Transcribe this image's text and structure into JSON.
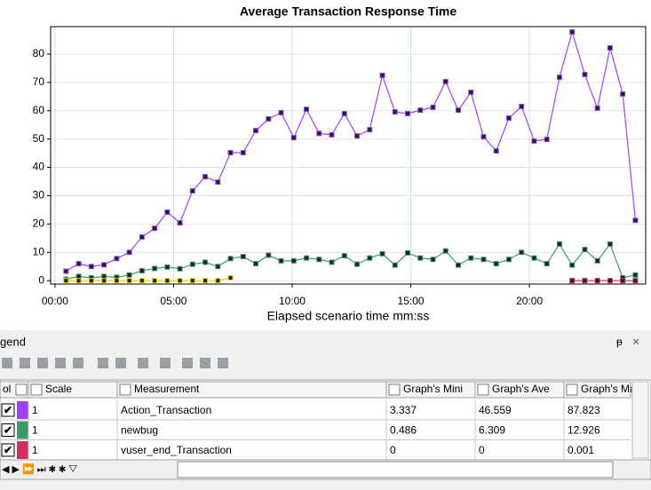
{
  "chart_data": {
    "type": "line",
    "title": "Average Transaction Response Time",
    "x_label": "Elapsed scenario time mm:ss",
    "x": [
      28,
      60,
      92,
      124,
      156,
      188,
      220,
      252,
      284,
      316,
      348,
      380,
      412,
      444,
      476,
      508,
      540,
      572,
      604,
      636,
      668,
      700,
      732,
      764,
      796,
      828,
      860,
      892,
      924,
      956,
      988,
      1020,
      1052,
      1084,
      1116,
      1148,
      1180,
      1212,
      1244,
      1276,
      1308,
      1340,
      1372,
      1404,
      1436,
      1468
    ],
    "xlim": [
      -11,
      1494
    ],
    "xticks": [
      {
        "value": 0,
        "label": "00:00"
      },
      {
        "value": 300,
        "label": "05:00"
      },
      {
        "value": 600,
        "label": "10:00"
      },
      {
        "value": 900,
        "label": "15:00"
      },
      {
        "value": 1200,
        "label": "20:00"
      }
    ],
    "ylim": [
      -1.2,
      89.7
    ],
    "yticks": [
      0,
      10,
      20,
      30,
      40,
      50,
      60,
      70,
      80
    ],
    "grid": true,
    "series": [
      {
        "name": "Action_Transaction",
        "color": "#a040ff",
        "values": [
          3.337,
          6,
          5,
          5.6,
          7.8,
          10,
          15.4,
          18.5,
          24.2,
          20.4,
          31.7,
          36.7,
          34.8,
          45.2,
          45.2,
          53,
          57.1,
          59.3,
          50.5,
          60.5,
          52,
          51.5,
          59,
          51.1,
          53.3,
          72.5,
          59.6,
          59,
          60.2,
          61.2,
          70.3,
          60.2,
          66.5,
          50.8,
          45.8,
          57.4,
          61.5,
          49.3,
          49.9,
          71.8,
          87.823,
          72.8,
          60.9,
          82.2,
          65.9,
          21.3
        ]
      },
      {
        "name": "newbug",
        "color": "#3c9a6a",
        "values": [
          0.486,
          1.5,
          1,
          1.5,
          1.2,
          2,
          3.5,
          4.3,
          4.8,
          4.2,
          5.8,
          6.5,
          5,
          7.8,
          8.5,
          6,
          9,
          7,
          7,
          8,
          7.5,
          6.5,
          8.8,
          5.8,
          8,
          9.5,
          5.5,
          9.8,
          8,
          7.5,
          10.5,
          5.5,
          8,
          7.5,
          6,
          7.5,
          10,
          8,
          6,
          12.926,
          5.5,
          11,
          7,
          12.9,
          1,
          2
        ]
      },
      {
        "name": "vuser_end_Transaction",
        "color": "#d0305a",
        "values": [
          null,
          null,
          null,
          null,
          null,
          null,
          null,
          null,
          null,
          null,
          null,
          null,
          null,
          null,
          null,
          null,
          null,
          null,
          null,
          null,
          null,
          null,
          null,
          null,
          null,
          null,
          null,
          null,
          null,
          null,
          null,
          null,
          null,
          null,
          null,
          null,
          null,
          null,
          null,
          null,
          0,
          0,
          0,
          0,
          0.001,
          0
        ]
      },
      {
        "color": "#f0d000",
        "values": [
          0,
          0,
          0,
          0,
          0,
          0,
          0,
          0,
          0,
          0,
          0,
          0,
          0,
          1,
          null,
          null,
          null,
          null,
          null,
          null,
          null,
          null,
          null,
          null,
          null,
          null,
          null,
          null,
          null,
          null,
          null,
          null,
          null,
          null,
          null,
          null,
          null,
          null,
          null,
          null,
          null,
          null,
          null,
          null,
          null,
          null
        ]
      }
    ]
  },
  "legend_panel": {
    "title": "gend",
    "header": [
      "ol",
      "Scale",
      "Measurement",
      "Graph's Mini",
      "Graph's Ave",
      "Graph's Max"
    ],
    "rows": [
      {
        "scale": "1",
        "measurement": "Action_Transaction",
        "min": "3.337",
        "ave": "46.559",
        "max": "87.823"
      },
      {
        "scale": "1",
        "measurement": "newbug",
        "min": "0.486",
        "ave": "6.309",
        "max": "12.926"
      },
      {
        "scale": "1",
        "measurement": "vuser_end_Transaction",
        "min": "0",
        "ave": "0",
        "max": "0.001"
      }
    ]
  }
}
